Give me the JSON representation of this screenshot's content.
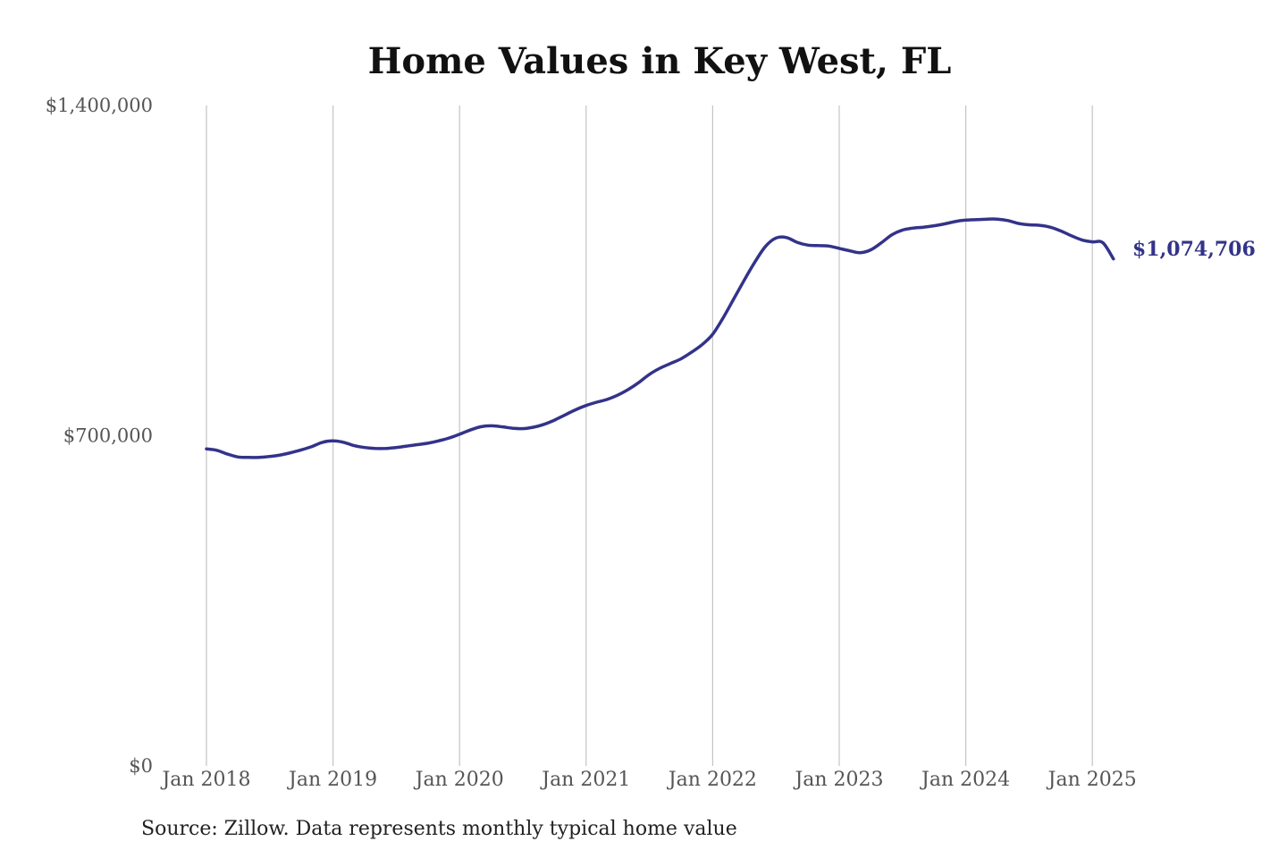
{
  "chart_data": {
    "type": "line",
    "title": "Home Values in Key West, FL",
    "xlabel": "",
    "ylabel": "",
    "ylim": [
      0,
      1400000
    ],
    "y_ticks": [
      "$0",
      "$700,000",
      "$1,400,000"
    ],
    "y_tick_values": [
      0,
      700000,
      1400000
    ],
    "x_tick_labels": [
      "Jan 2018",
      "Jan 2019",
      "Jan 2020",
      "Jan 2021",
      "Jan 2022",
      "Jan 2023",
      "Jan 2024",
      "Jan 2025"
    ],
    "x_tick_months": [
      0,
      12,
      24,
      36,
      48,
      60,
      72,
      84
    ],
    "grid": "vertical",
    "line_color": "#33338a",
    "end_label": "$1,074,706",
    "series": [
      {
        "x": [
          "2018-01",
          "2018-02",
          "2018-03",
          "2018-04",
          "2018-05",
          "2018-06",
          "2018-07",
          "2018-08",
          "2018-09",
          "2018-10",
          "2018-11",
          "2018-12",
          "2019-01",
          "2019-02",
          "2019-03",
          "2019-04",
          "2019-05",
          "2019-06",
          "2019-07",
          "2019-08",
          "2019-09",
          "2019-10",
          "2019-11",
          "2019-12",
          "2020-01",
          "2020-02",
          "2020-03",
          "2020-04",
          "2020-05",
          "2020-06",
          "2020-07",
          "2020-08",
          "2020-09",
          "2020-10",
          "2020-11",
          "2020-12",
          "2021-01",
          "2021-02",
          "2021-03",
          "2021-04",
          "2021-05",
          "2021-06",
          "2021-07",
          "2021-08",
          "2021-09",
          "2021-10",
          "2021-11",
          "2021-12",
          "2022-01",
          "2022-02",
          "2022-03",
          "2022-04",
          "2022-05",
          "2022-06",
          "2022-07",
          "2022-08",
          "2022-09",
          "2022-10",
          "2022-11",
          "2022-12",
          "2023-01",
          "2023-02",
          "2023-03",
          "2023-04",
          "2023-05",
          "2023-06",
          "2023-07",
          "2023-08",
          "2023-09",
          "2023-10",
          "2023-11",
          "2023-12",
          "2024-01",
          "2024-02",
          "2024-03",
          "2024-04",
          "2024-05",
          "2024-06",
          "2024-07",
          "2024-08",
          "2024-09",
          "2024-10",
          "2024-11",
          "2024-12",
          "2025-01",
          "2025-02",
          "2025-03"
        ],
        "values": [
          672000,
          669000,
          661000,
          655000,
          654000,
          654000,
          656000,
          659000,
          664000,
          670000,
          677000,
          686000,
          689000,
          686000,
          679000,
          675000,
          673000,
          673000,
          675000,
          678000,
          681000,
          684000,
          689000,
          695000,
          703000,
          712000,
          719000,
          721000,
          719000,
          716000,
          715000,
          718000,
          724000,
          733000,
          744000,
          755000,
          764000,
          771000,
          777000,
          786000,
          798000,
          813000,
          830000,
          843000,
          853000,
          863000,
          877000,
          893000,
          915000,
          950000,
          990000,
          1030000,
          1068000,
          1101000,
          1119000,
          1120000,
          1110000,
          1104000,
          1103000,
          1102000,
          1097000,
          1092000,
          1088000,
          1094000,
          1109000,
          1126000,
          1136000,
          1140000,
          1142000,
          1145000,
          1149000,
          1154000,
          1157000,
          1158000,
          1159000,
          1159000,
          1156000,
          1150000,
          1147000,
          1146000,
          1142000,
          1134000,
          1124000,
          1115000,
          1111000,
          1109000,
          1074706
        ]
      }
    ]
  },
  "source_text": "Source: Zillow. Data represents monthly typical home value"
}
